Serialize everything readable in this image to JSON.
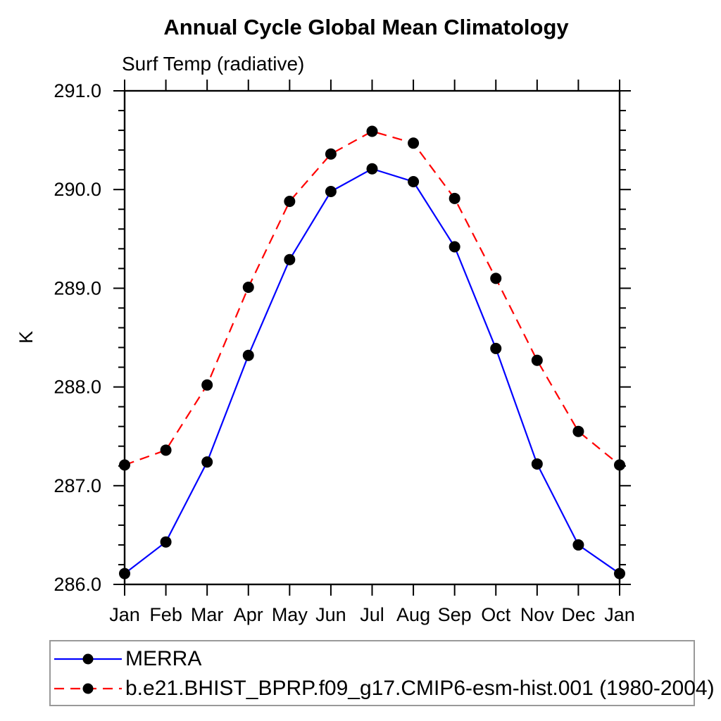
{
  "chart_data": {
    "type": "line",
    "title": "Annual Cycle Global Mean Climatology",
    "subtitle": "Surf Temp (radiative)",
    "ylabel": "K",
    "categories": [
      "Jan",
      "Feb",
      "Mar",
      "Apr",
      "May",
      "Jun",
      "Jul",
      "Aug",
      "Sep",
      "Oct",
      "Nov",
      "Dec",
      "Jan"
    ],
    "ylim": [
      286.0,
      291.0
    ],
    "ytick_major_interval": 1.0,
    "ytick_minor_interval": 0.2,
    "ytick_labels": [
      "286.0",
      "287.0",
      "288.0",
      "289.0",
      "290.0",
      "291.0"
    ],
    "grid": false,
    "legend_position": "bottom-left-box",
    "axis_color": "#000000",
    "series": [
      {
        "name": "MERRA",
        "color": "#0000ff",
        "line_style": "solid",
        "marker": "filled-circle",
        "marker_color": "#000000",
        "values": [
          286.11,
          286.43,
          287.24,
          288.32,
          289.29,
          289.98,
          290.21,
          290.08,
          289.42,
          288.39,
          287.22,
          286.4,
          286.11
        ]
      },
      {
        "name": "b.e21.BHIST_BPRP.f09_g17.CMIP6-esm-hist.001 (1980-2004)",
        "color": "#ff0000",
        "line_style": "dashed",
        "marker": "filled-circle",
        "marker_color": "#000000",
        "values": [
          287.21,
          287.36,
          288.02,
          289.01,
          289.88,
          290.36,
          290.59,
          290.47,
          289.91,
          289.1,
          288.27,
          287.55,
          287.21
        ]
      }
    ]
  }
}
